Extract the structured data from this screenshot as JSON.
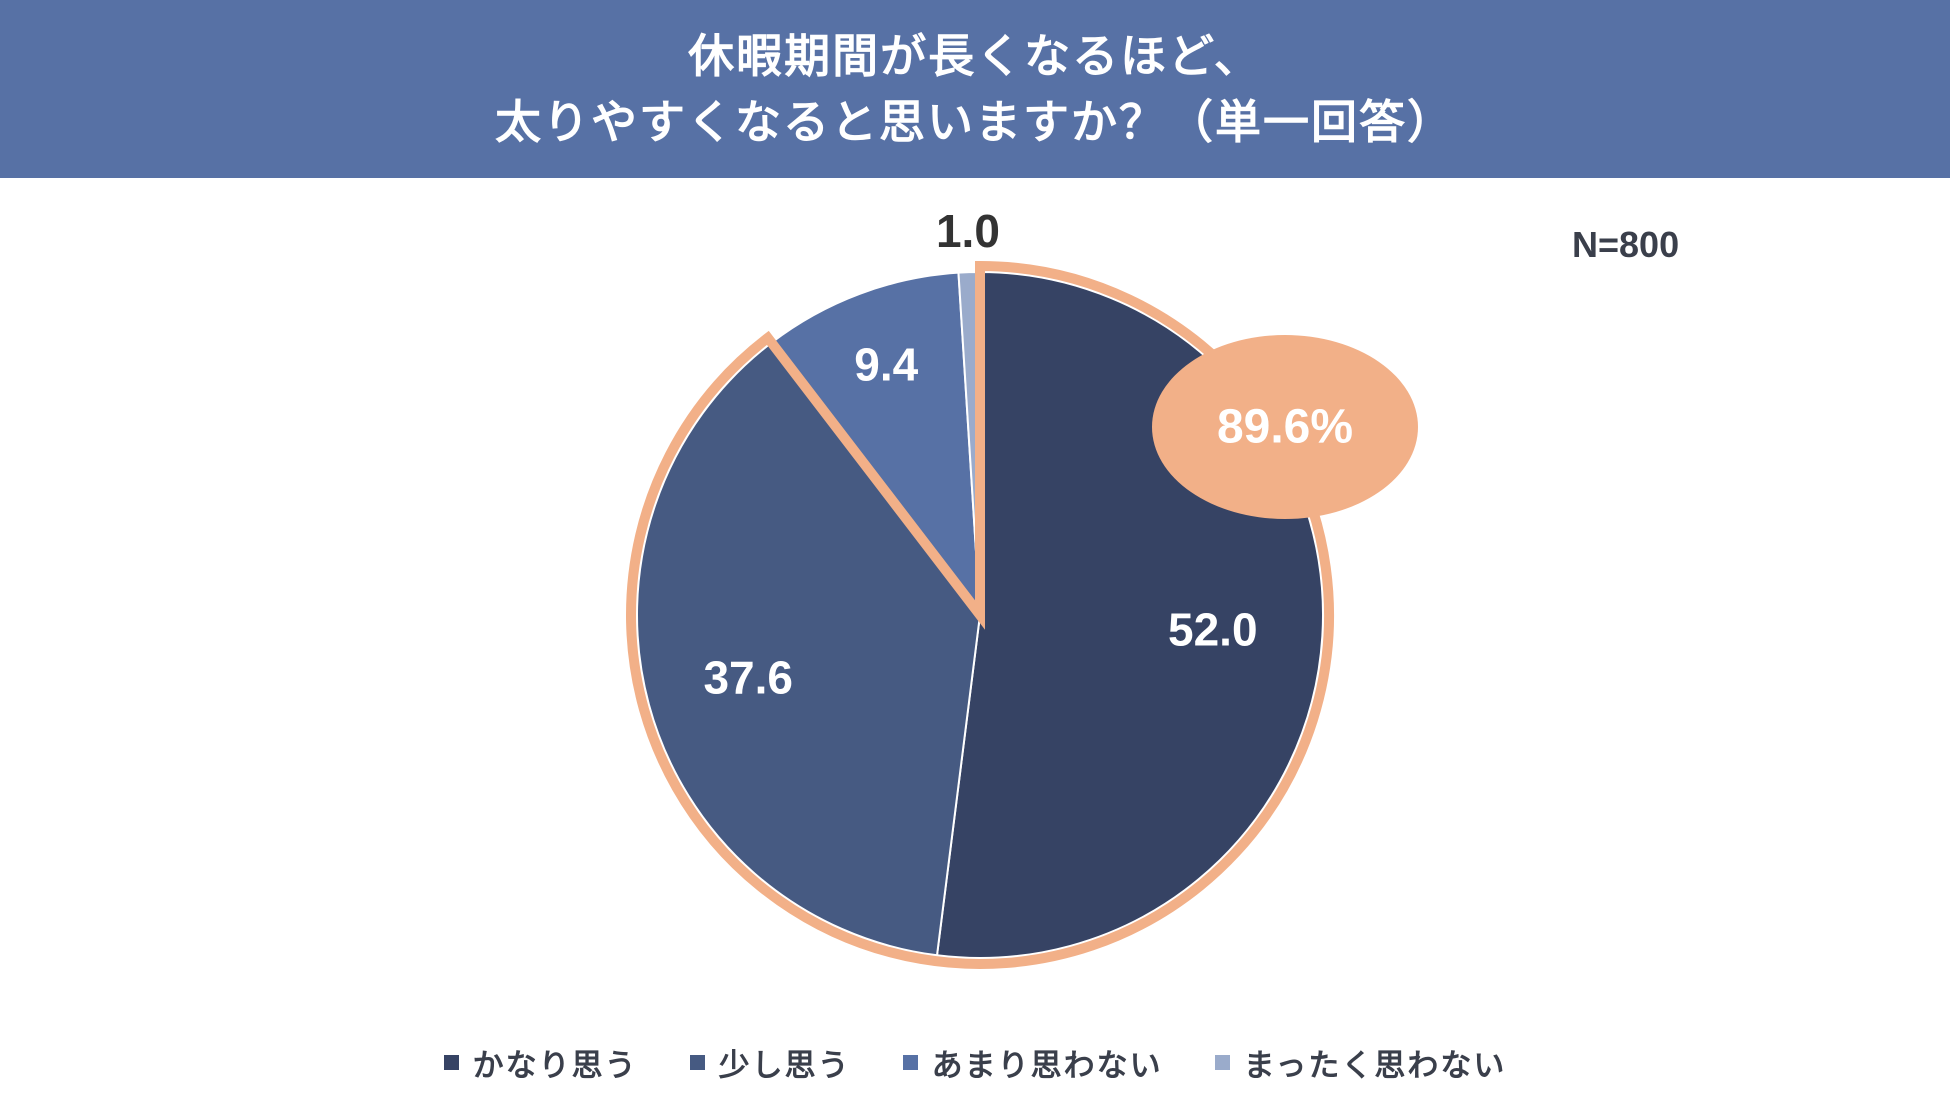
{
  "header": {
    "title_line1": "休暇期間が長くなるほど、",
    "title_line2": "太りやすくなると思いますか？（単一回答）"
  },
  "sample_size": "N=800",
  "colors": {
    "header_bg": "#5771a5",
    "highlight": "#f2b088"
  },
  "chart_data": {
    "type": "pie",
    "title": "休暇期間が長くなるほど、太りやすくなると思いますか？（単一回答）",
    "n_label": "N=800",
    "start": "12 o'clock, clockwise",
    "series": [
      {
        "name": "かなり思う",
        "value": 52.0,
        "label": "52.0",
        "color": "#364364",
        "label_color": "#ffffff"
      },
      {
        "name": "少し思う",
        "value": 37.6,
        "label": "37.6",
        "color": "#465a82",
        "label_color": "#ffffff"
      },
      {
        "name": "あまり思わない",
        "value": 9.4,
        "label": "9.4",
        "color": "#5771a5",
        "label_color": "#ffffff"
      },
      {
        "name": "まったく思わない",
        "value": 1.0,
        "label": "1.0",
        "color": "#9aabcb",
        "label_color": "#333333"
      }
    ],
    "highlight": {
      "label": "89.6%",
      "covers": [
        "かなり思う",
        "少し思う"
      ],
      "value": 89.6
    },
    "legend_position": "bottom"
  }
}
